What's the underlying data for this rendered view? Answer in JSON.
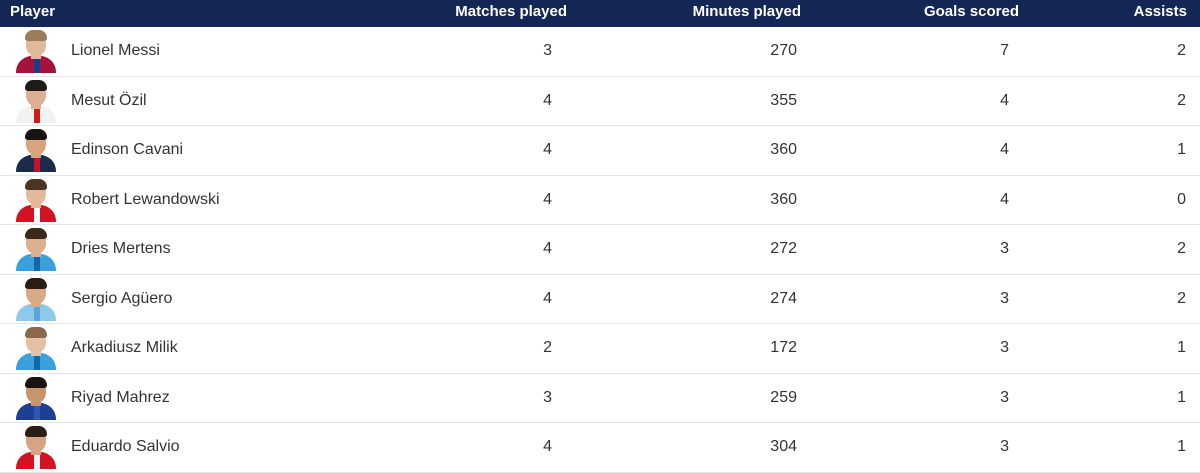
{
  "header": {
    "player": "Player",
    "matches_played": "Matches played",
    "minutes_played": "Minutes played",
    "goals_scored": "Goals scored",
    "assists": "Assists"
  },
  "colors": {
    "header_bg": "#142754",
    "header_text": "#ffffff",
    "row_text": "#333333",
    "row_divider": "#e4e4e4"
  },
  "players": [
    {
      "name": "Lionel Messi",
      "matches": "3",
      "minutes": "270",
      "goals": "7",
      "assists": "2",
      "avatar_icon": "player-photo-icon",
      "shirt": "#a3133c",
      "shirt2": "#1a3c8c",
      "skin": "#e0b89a",
      "hair": "#9a7b5a"
    },
    {
      "name": "Mesut Özil",
      "matches": "4",
      "minutes": "355",
      "goals": "4",
      "assists": "2",
      "avatar_icon": "player-photo-icon",
      "shirt": "#f2f2f2",
      "shirt2": "#d11a1a",
      "skin": "#dcb091",
      "hair": "#1f1a16"
    },
    {
      "name": "Edinson Cavani",
      "matches": "4",
      "minutes": "360",
      "goals": "4",
      "assists": "1",
      "avatar_icon": "player-photo-icon",
      "shirt": "#1b2b4a",
      "shirt2": "#c8102e",
      "skin": "#d7a47f",
      "hair": "#1a120c"
    },
    {
      "name": "Robert Lewandowski",
      "matches": "4",
      "minutes": "360",
      "goals": "4",
      "assists": "0",
      "avatar_icon": "player-photo-icon",
      "shirt": "#d01422",
      "shirt2": "#ffffff",
      "skin": "#e3b99c",
      "hair": "#4a3424"
    },
    {
      "name": "Dries Mertens",
      "matches": "4",
      "minutes": "272",
      "goals": "3",
      "assists": "2",
      "avatar_icon": "player-photo-icon",
      "shirt": "#3aa0dc",
      "shirt2": "#1466a8",
      "skin": "#ddb08e",
      "hair": "#3a2a1c"
    },
    {
      "name": "Sergio Agüero",
      "matches": "4",
      "minutes": "274",
      "goals": "3",
      "assists": "2",
      "avatar_icon": "player-photo-icon",
      "shirt": "#8ec8ea",
      "shirt2": "#5aa6d8",
      "skin": "#d9a985",
      "hair": "#2a1d14"
    },
    {
      "name": "Arkadiusz Milik",
      "matches": "2",
      "minutes": "172",
      "goals": "3",
      "assists": "1",
      "avatar_icon": "player-photo-icon",
      "shirt": "#3aa0dc",
      "shirt2": "#1466a8",
      "skin": "#e6c0a4",
      "hair": "#8a6a4a"
    },
    {
      "name": "Riyad Mahrez",
      "matches": "3",
      "minutes": "259",
      "goals": "3",
      "assists": "1",
      "avatar_icon": "player-photo-icon",
      "shirt": "#1c3f94",
      "shirt2": "#2c57b8",
      "skin": "#c8946e",
      "hair": "#1a120c"
    },
    {
      "name": "Eduardo Salvio",
      "matches": "4",
      "minutes": "304",
      "goals": "3",
      "assists": "1",
      "avatar_icon": "player-photo-icon",
      "shirt": "#d01422",
      "shirt2": "#f2f2f2",
      "skin": "#d6a482",
      "hair": "#2a1d14"
    }
  ]
}
